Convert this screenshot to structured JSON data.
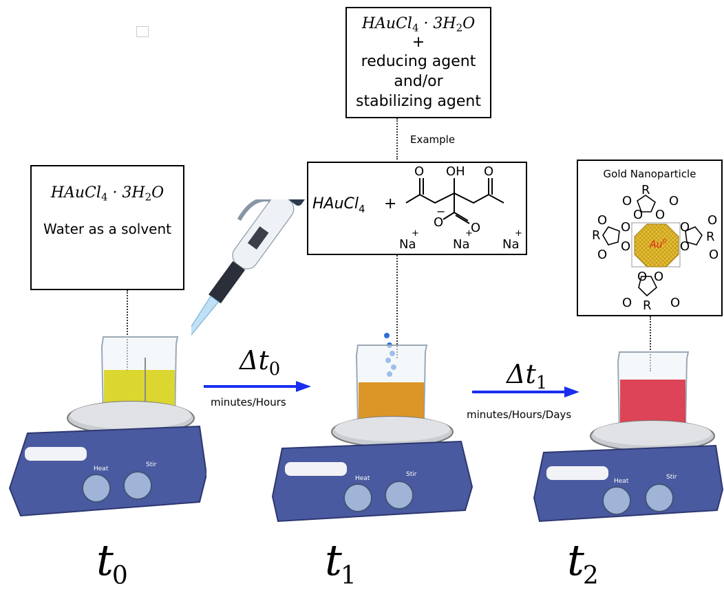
{
  "top_box": {
    "formula_main": "HAuCl",
    "formula_sub1": "4",
    "formula_mid": " · 3H",
    "formula_sub2": "2",
    "formula_end": "O",
    "plus": "+",
    "line1": "reducing agent",
    "line2": "and/or",
    "line3": "stabilizing agent"
  },
  "example_label": "Example",
  "left_box": {
    "formula_main": "HAuCl",
    "formula_sub1": "4",
    "formula_mid": " · 3H",
    "formula_sub2": "2",
    "formula_end": "O",
    "caption": "Water as a solvent"
  },
  "middle_box": {
    "formula_main": "HAuCl",
    "formula_sub": "4",
    "plus": "+",
    "oh": "OH",
    "o": "O",
    "na": "Na",
    "charge_plus": "+",
    "charge_minus": "−"
  },
  "right_box": {
    "title": "Gold Nanoparticle",
    "o": "O",
    "r": "R",
    "core_label": "Au",
    "core_sup": "0"
  },
  "arrow0": {
    "delta": "Δt",
    "sub": "0",
    "caption": "minutes/Hours"
  },
  "arrow1": {
    "delta": "Δt",
    "sub": "1",
    "caption": "minutes/Hours/Days"
  },
  "time_labels": [
    {
      "t": "t",
      "sub": "0"
    },
    {
      "t": "t",
      "sub": "1"
    },
    {
      "t": "t",
      "sub": "2"
    }
  ],
  "plate_labels": {
    "heat": "Heat",
    "stir": "Stir"
  },
  "colors": {
    "arrow": "#1a2ef0",
    "liquid_t0": "#d9d21a",
    "liquid_t1": "#d98a10",
    "liquid_t2": "#d8243a",
    "plate_body": "#4a5aa0",
    "gold": "#e0b830",
    "core_text": "#e02020"
  }
}
